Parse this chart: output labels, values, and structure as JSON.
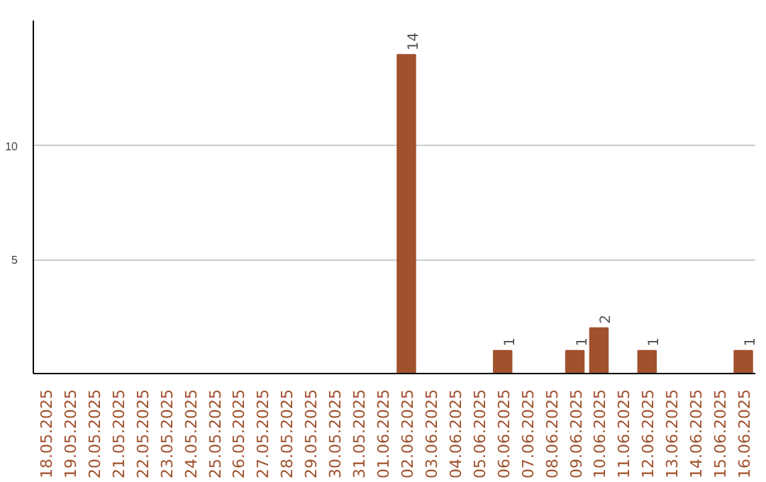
{
  "chart_data": {
    "type": "bar",
    "categories": [
      "18.05.2025",
      "19.05.2025",
      "20.05.2025",
      "21.05.2025",
      "22.05.2025",
      "23.05.2025",
      "24.05.2025",
      "25.05.2025",
      "26.05.2025",
      "27.05.2025",
      "28.05.2025",
      "29.05.2025",
      "30.05.2025",
      "31.05.2025",
      "01.06.2025",
      "02.06.2025",
      "03.06.2025",
      "04.06.2025",
      "05.06.2025",
      "06.06.2025",
      "07.06.2025",
      "08.06.2025",
      "09.06.2025",
      "10.06.2025",
      "11.06.2025",
      "12.06.2025",
      "13.06.2025",
      "14.06.2025",
      "15.06.2025",
      "16.06.2025"
    ],
    "values": [
      0,
      0,
      0,
      0,
      0,
      0,
      0,
      0,
      0,
      0,
      0,
      0,
      0,
      0,
      0,
      14,
      0,
      0,
      0,
      1,
      0,
      0,
      1,
      2,
      0,
      1,
      0,
      0,
      0,
      1
    ],
    "value_labels": [
      null,
      null,
      null,
      null,
      null,
      null,
      null,
      null,
      null,
      null,
      null,
      null,
      null,
      null,
      null,
      "14",
      null,
      null,
      null,
      "1",
      null,
      null,
      "1",
      "2",
      null,
      "1",
      null,
      null,
      null,
      "1"
    ],
    "color": "#a0522d",
    "ylim": [
      0,
      15.5
    ],
    "yticks": [
      5,
      10
    ],
    "grid": "y"
  }
}
